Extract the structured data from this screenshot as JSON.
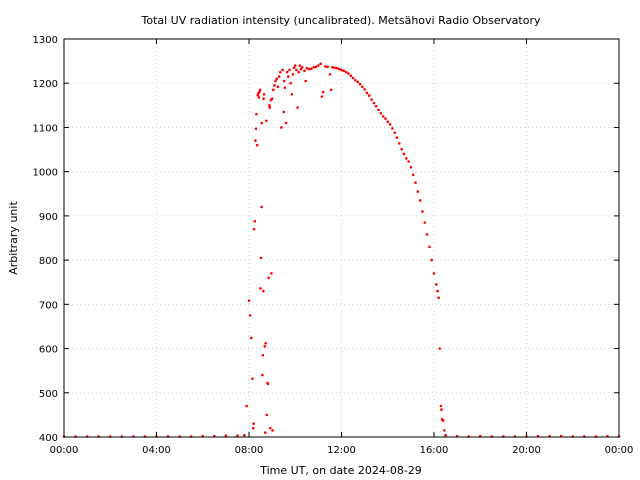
{
  "chart_data": {
    "type": "scatter",
    "title": "Total UV radiation intensity (uncalibrated). Metsähovi Radio Observatory",
    "xlabel": "Time UT, on date 2024-08-29",
    "ylabel": "Arbitrary unit",
    "xlim": [
      0,
      24
    ],
    "ylim": [
      400,
      1300
    ],
    "grid": true,
    "point_color": "#ff0000",
    "x_ticks": [
      {
        "value": 0,
        "label": "00:00"
      },
      {
        "value": 4,
        "label": "04:00"
      },
      {
        "value": 8,
        "label": "08:00"
      },
      {
        "value": 12,
        "label": "12:00"
      },
      {
        "value": 16,
        "label": "16:00"
      },
      {
        "value": 20,
        "label": "20:00"
      },
      {
        "value": 24,
        "label": "00:00"
      }
    ],
    "y_ticks": [
      {
        "value": 400,
        "label": "400"
      },
      {
        "value": 500,
        "label": "500"
      },
      {
        "value": 600,
        "label": "600"
      },
      {
        "value": 700,
        "label": "700"
      },
      {
        "value": 800,
        "label": "800"
      },
      {
        "value": 900,
        "label": "900"
      },
      {
        "value": 1000,
        "label": "1000"
      },
      {
        "value": 1100,
        "label": "1100"
      },
      {
        "value": 1200,
        "label": "1200"
      },
      {
        "value": 1300,
        "label": "1300"
      }
    ],
    "series": [
      {
        "points": [
          [
            0.0,
            401
          ],
          [
            0.5,
            401
          ],
          [
            1.0,
            401
          ],
          [
            1.5,
            401
          ],
          [
            2.0,
            401
          ],
          [
            2.5,
            401
          ],
          [
            3.0,
            401
          ],
          [
            3.5,
            401
          ],
          [
            4.0,
            401
          ],
          [
            4.5,
            401
          ],
          [
            5.0,
            401
          ],
          [
            5.5,
            401
          ],
          [
            6.0,
            402
          ],
          [
            6.5,
            402
          ],
          [
            7.0,
            403
          ],
          [
            7.5,
            403
          ],
          [
            7.8,
            404
          ],
          [
            7.9,
            470
          ],
          [
            8.0,
            708
          ],
          [
            8.05,
            675
          ],
          [
            8.1,
            624
          ],
          [
            8.15,
            532
          ],
          [
            8.18,
            420
          ],
          [
            8.2,
            430
          ],
          [
            8.22,
            870
          ],
          [
            8.25,
            888
          ],
          [
            8.28,
            1070
          ],
          [
            8.3,
            1097
          ],
          [
            8.32,
            1130
          ],
          [
            8.35,
            1060
          ],
          [
            8.38,
            1173
          ],
          [
            8.4,
            1177
          ],
          [
            8.43,
            1168
          ],
          [
            8.45,
            1180
          ],
          [
            8.48,
            1185
          ],
          [
            8.5,
            736
          ],
          [
            8.52,
            805
          ],
          [
            8.55,
            920
          ],
          [
            8.55,
            1110
          ],
          [
            8.58,
            540
          ],
          [
            8.6,
            585
          ],
          [
            8.62,
            730
          ],
          [
            8.63,
            1165
          ],
          [
            8.65,
            1175
          ],
          [
            8.68,
            605
          ],
          [
            8.7,
            410
          ],
          [
            8.72,
            612
          ],
          [
            8.75,
            1115
          ],
          [
            8.77,
            450
          ],
          [
            8.8,
            522
          ],
          [
            8.82,
            520
          ],
          [
            8.85,
            760
          ],
          [
            8.88,
            1150
          ],
          [
            8.9,
            1145
          ],
          [
            8.92,
            420
          ],
          [
            8.95,
            1162
          ],
          [
            8.97,
            770
          ],
          [
            9.0,
            1165
          ],
          [
            9.02,
            415
          ],
          [
            9.05,
            1185
          ],
          [
            9.1,
            1195
          ],
          [
            9.15,
            1205
          ],
          [
            9.2,
            1210
          ],
          [
            9.25,
            1192
          ],
          [
            9.3,
            1215
          ],
          [
            9.35,
            1225
          ],
          [
            9.4,
            1100
          ],
          [
            9.45,
            1230
          ],
          [
            9.5,
            1135
          ],
          [
            9.52,
            1205
          ],
          [
            9.55,
            1190
          ],
          [
            9.6,
            1110
          ],
          [
            9.65,
            1225
          ],
          [
            9.7,
            1215
          ],
          [
            9.75,
            1230
          ],
          [
            9.8,
            1200
          ],
          [
            9.85,
            1175
          ],
          [
            9.9,
            1220
          ],
          [
            9.95,
            1235
          ],
          [
            10.0,
            1240
          ],
          [
            10.05,
            1230
          ],
          [
            10.1,
            1145
          ],
          [
            10.15,
            1225
          ],
          [
            10.2,
            1240
          ],
          [
            10.25,
            1232
          ],
          [
            10.3,
            1236
          ],
          [
            10.4,
            1228
          ],
          [
            10.45,
            1205
          ],
          [
            10.5,
            1234
          ],
          [
            10.6,
            1232
          ],
          [
            10.7,
            1233
          ],
          [
            10.8,
            1236
          ],
          [
            10.9,
            1237
          ],
          [
            11.0,
            1240
          ],
          [
            11.1,
            1244
          ],
          [
            11.15,
            1170
          ],
          [
            11.2,
            1180
          ],
          [
            11.3,
            1238
          ],
          [
            11.4,
            1237
          ],
          [
            11.5,
            1220
          ],
          [
            11.55,
            1185
          ],
          [
            11.6,
            1236
          ],
          [
            11.7,
            1235
          ],
          [
            11.8,
            1234
          ],
          [
            11.9,
            1232
          ],
          [
            12.0,
            1230
          ],
          [
            12.1,
            1228
          ],
          [
            12.2,
            1225
          ],
          [
            12.3,
            1222
          ],
          [
            12.4,
            1217
          ],
          [
            12.5,
            1212
          ],
          [
            12.6,
            1207
          ],
          [
            12.7,
            1203
          ],
          [
            12.8,
            1198
          ],
          [
            12.9,
            1192
          ],
          [
            13.0,
            1186
          ],
          [
            13.1,
            1178
          ],
          [
            13.2,
            1172
          ],
          [
            13.3,
            1163
          ],
          [
            13.4,
            1155
          ],
          [
            13.5,
            1148
          ],
          [
            13.6,
            1140
          ],
          [
            13.7,
            1132
          ],
          [
            13.8,
            1125
          ],
          [
            13.9,
            1120
          ],
          [
            14.0,
            1113
          ],
          [
            14.1,
            1107
          ],
          [
            14.2,
            1098
          ],
          [
            14.3,
            1088
          ],
          [
            14.4,
            1077
          ],
          [
            14.5,
            1064
          ],
          [
            14.6,
            1051
          ],
          [
            14.7,
            1040
          ],
          [
            14.8,
            1030
          ],
          [
            14.9,
            1023
          ],
          [
            15.0,
            1010
          ],
          [
            15.1,
            993
          ],
          [
            15.2,
            975
          ],
          [
            15.3,
            955
          ],
          [
            15.4,
            935
          ],
          [
            15.5,
            910
          ],
          [
            15.6,
            885
          ],
          [
            15.7,
            858
          ],
          [
            15.8,
            830
          ],
          [
            15.9,
            800
          ],
          [
            16.0,
            770
          ],
          [
            16.1,
            745
          ],
          [
            16.15,
            730
          ],
          [
            16.2,
            715
          ],
          [
            16.25,
            600
          ],
          [
            16.3,
            470
          ],
          [
            16.32,
            462
          ],
          [
            16.35,
            440
          ],
          [
            16.4,
            437
          ],
          [
            16.45,
            415
          ],
          [
            16.5,
            404
          ],
          [
            17.0,
            402
          ],
          [
            17.5,
            401
          ],
          [
            18.0,
            402
          ],
          [
            18.5,
            401
          ],
          [
            19.0,
            401
          ],
          [
            19.5,
            401
          ],
          [
            20.0,
            401
          ],
          [
            20.5,
            402
          ],
          [
            21.0,
            402
          ],
          [
            21.5,
            402
          ],
          [
            22.0,
            401
          ],
          [
            22.5,
            401
          ],
          [
            23.0,
            401
          ],
          [
            23.5,
            402
          ],
          [
            24.0,
            401
          ]
        ]
      }
    ]
  }
}
